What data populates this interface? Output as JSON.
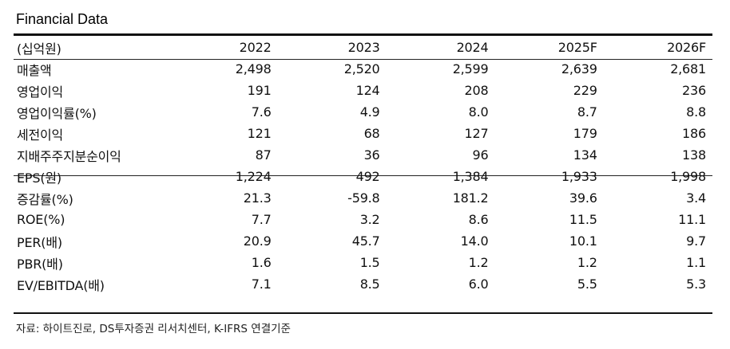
{
  "title": "Financial Data",
  "header": [
    "(십억원)",
    "2022",
    "2023",
    "2024",
    "2025F",
    "2026F"
  ],
  "rows_group1": [
    [
      "매출액",
      "2,498",
      "2,520",
      "2,599",
      "2,639",
      "2,681"
    ],
    [
      "영업이익",
      "191",
      "124",
      "208",
      "229",
      "236"
    ],
    [
      "영업이익률(%)",
      "7.6",
      "4.9",
      "8.0",
      "8.7",
      "8.8"
    ],
    [
      "세전이익",
      "121",
      "68",
      "127",
      "179",
      "186"
    ],
    [
      "지배주주지분순이익",
      "87",
      "36",
      "96",
      "134",
      "138"
    ]
  ],
  "rows_group2": [
    [
      "EPS(원)",
      "1,224",
      "492",
      "1,384",
      "1,933",
      "1,998"
    ],
    [
      "증감률(%)",
      "21.3",
      "-59.8",
      "181.2",
      "39.6",
      "3.4"
    ],
    [
      "ROE(%)",
      "7.7",
      "3.2",
      "8.6",
      "11.5",
      "11.1"
    ],
    [
      "PER(배)",
      "20.9",
      "45.7",
      "14.0",
      "10.1",
      "9.7"
    ],
    [
      "PBR(배)",
      "1.6",
      "1.5",
      "1.2",
      "1.2",
      "1.1"
    ],
    [
      "EV/EBITDA(배)",
      "7.1",
      "8.5",
      "6.0",
      "5.5",
      "5.3"
    ]
  ],
  "source": "자료: 하이트진로, DS투자증권 리서치센터, K-IFRS 연결기준"
}
